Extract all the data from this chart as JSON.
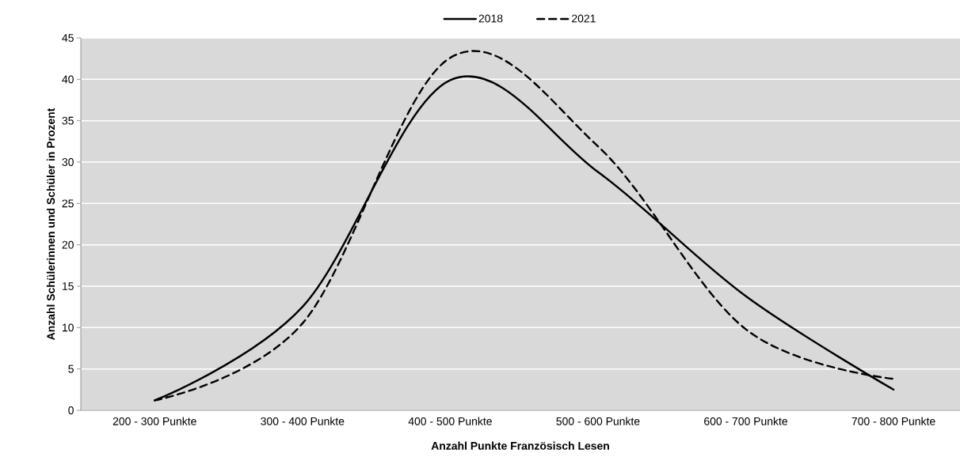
{
  "chart_data": {
    "type": "line",
    "xlabel": "Anzahl Punkte Französisch Lesen",
    "ylabel": "Anzahl Schülerinnen  und Schüler in Prozent",
    "categories": [
      "200 - 300 Punkte",
      "300 - 400 Punkte",
      "400 - 500 Punkte",
      "500 - 600 Punkte",
      "600 - 700 Punkte",
      "700 - 800 Punkte"
    ],
    "series": [
      {
        "name": "2018",
        "color": "#000000",
        "line_style": "solid",
        "values": [
          1.2,
          12.5,
          39.9,
          28.8,
          13.8,
          2.5
        ]
      },
      {
        "name": "2021",
        "color": "#000000",
        "line_style": "dashed",
        "values": [
          1.2,
          10.5,
          42.6,
          31.9,
          9.8,
          3.8
        ]
      }
    ],
    "ylim": [
      0,
      45
    ],
    "yticks": [
      0,
      5,
      10,
      15,
      20,
      25,
      30,
      35,
      40,
      45
    ],
    "grid": "y",
    "legend": "top"
  }
}
